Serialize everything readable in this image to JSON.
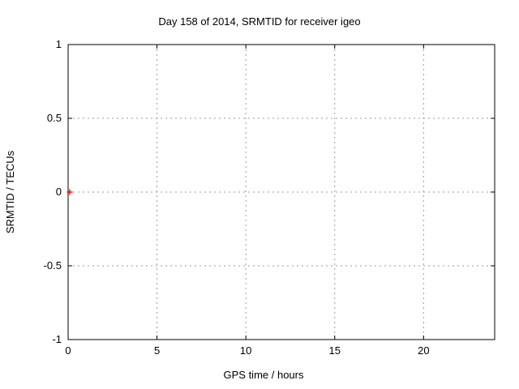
{
  "chart_data": {
    "type": "scatter",
    "title": "Day 158 of 2014, SRMTID for receiver igeo",
    "xlabel": "GPS time / hours",
    "ylabel": "SRMTID / TECUs",
    "xlim": [
      0,
      24
    ],
    "ylim": [
      -1,
      1
    ],
    "xticks": [
      0,
      5,
      10,
      15,
      20
    ],
    "xtick_labels": [
      "0",
      "5",
      "10",
      "15",
      "20"
    ],
    "yticks": [
      -1,
      -0.5,
      0,
      0.5,
      1
    ],
    "ytick_labels": [
      "-1",
      "-0.5",
      "0",
      "0.5",
      "1"
    ],
    "grid": true,
    "grid_style": "dotted",
    "legend": "none",
    "series": [
      {
        "name": "SRMTID",
        "marker": "plus",
        "color": "#ff0000",
        "points": [
          [
            0.09,
            0.0
          ]
        ]
      }
    ],
    "colors": {
      "background": "#ffffff",
      "border": "#000000",
      "grid": "#9b9b9b",
      "text": "#000000",
      "marker": "#ff0000"
    }
  }
}
